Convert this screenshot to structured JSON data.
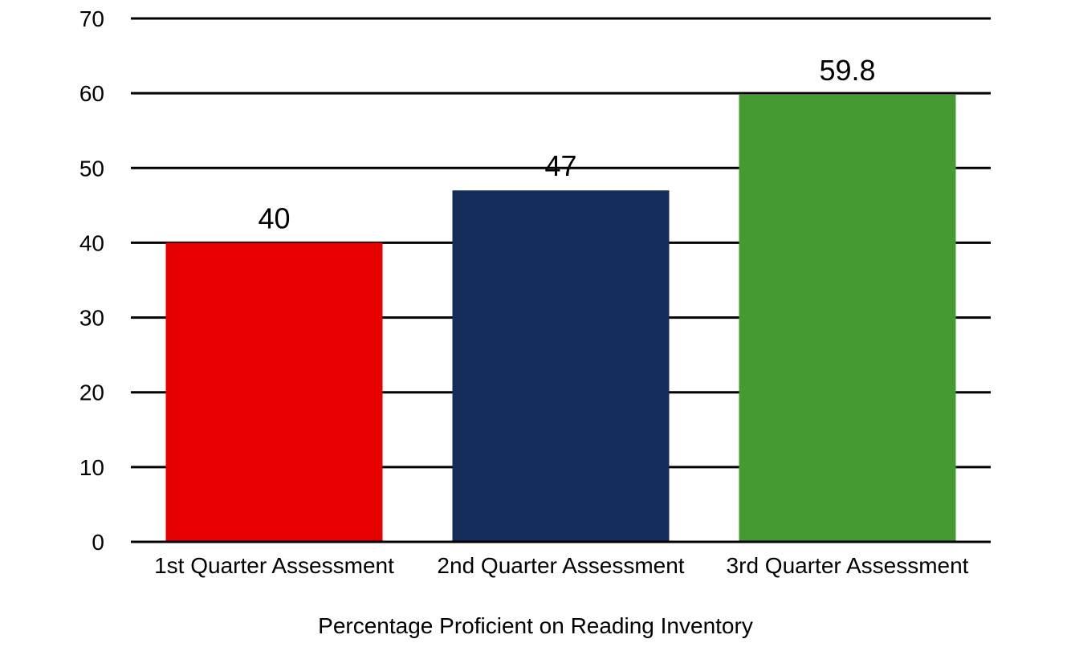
{
  "chart_data": {
    "type": "bar",
    "title": "",
    "xlabel": "Percentage Proficient on Reading Inventory",
    "ylabel": "",
    "ylim": [
      0,
      70
    ],
    "yticks": [
      0,
      10,
      20,
      30,
      40,
      50,
      60,
      70
    ],
    "grid": true,
    "legend": "none",
    "categories": [
      "1st Quarter Assessment",
      "2nd Quarter Assessment",
      "3rd Quarter Assessment"
    ],
    "values": [
      40,
      47,
      59.8
    ],
    "data_labels": [
      "40",
      "47",
      "59.8"
    ],
    "colors": [
      "#e60000",
      "#132c5a",
      "#459a32"
    ]
  }
}
